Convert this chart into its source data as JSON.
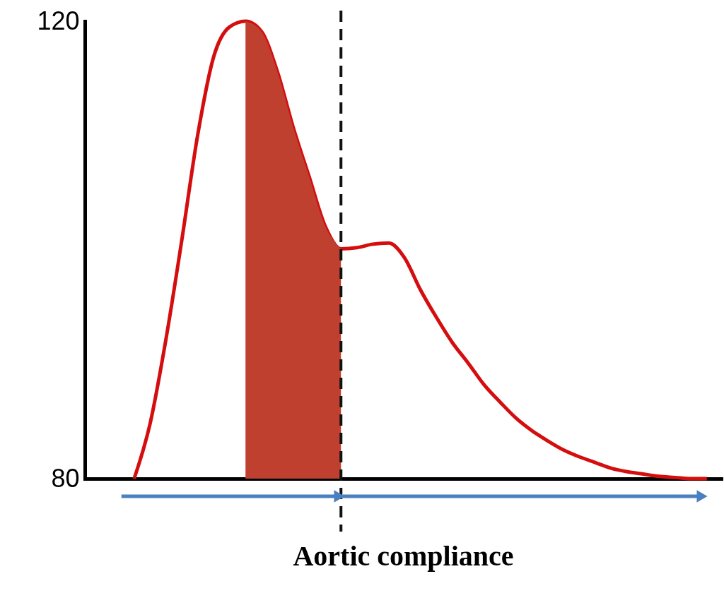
{
  "chart_data": {
    "type": "line",
    "xlabel": "Aortic compliance",
    "ylim": [
      80,
      120
    ],
    "yticks": [
      80,
      120
    ],
    "tick_labels": "y",
    "grid": false,
    "marker": "none",
    "line_style": "solid",
    "categories": [
      null,
      null,
      null,
      null,
      null,
      null,
      null,
      null,
      null,
      null,
      null,
      null,
      null,
      null,
      null,
      null,
      null,
      null,
      null,
      null,
      null,
      null,
      null,
      null,
      null,
      null,
      null,
      null,
      null,
      null,
      null,
      null,
      null,
      null,
      null,
      null,
      null
    ],
    "series": [
      {
        "color": "#d40e0e",
        "values": [
          80,
          84.8,
          92.2,
          100.9,
          110.1,
          116.9,
          119.5,
          120,
          119.1,
          115.6,
          110.7,
          106.4,
          102.1,
          100.1,
          100.2,
          100.5,
          100.6,
          99.3,
          96.5,
          94.1,
          91.9,
          90.1,
          88.2,
          86.7,
          85.3,
          84.2,
          83.3,
          82.5,
          81.9,
          81.4,
          80.9,
          80.6,
          80.4,
          80.2,
          80.1,
          80,
          80
        ],
        "lower": [
          null,
          null,
          null,
          null,
          null,
          null,
          null,
          80,
          80,
          80,
          80,
          80,
          80,
          80,
          null,
          null,
          null,
          null,
          null,
          null,
          null,
          null,
          null,
          null,
          null,
          null,
          null,
          null,
          null,
          null,
          null,
          null,
          null,
          null,
          null,
          null,
          null
        ],
        "upper": [
          null,
          null,
          null,
          null,
          null,
          null,
          null,
          120,
          119.1,
          115.6,
          110.7,
          106.4,
          102.1,
          100.1,
          null,
          null,
          null,
          null,
          null,
          null,
          null,
          null,
          null,
          null,
          null,
          null,
          null,
          null,
          null,
          null,
          null,
          null,
          null,
          null,
          null,
          null,
          null
        ]
      }
    ]
  }
}
